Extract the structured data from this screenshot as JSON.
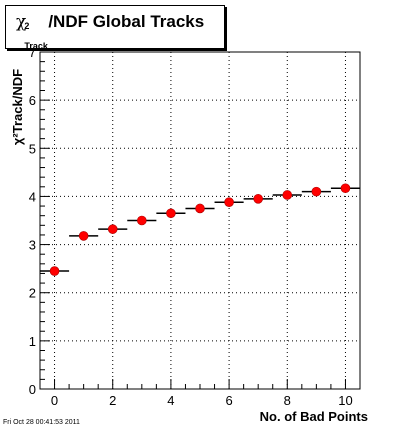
{
  "title": {
    "prefix": "χ",
    "sup": "2",
    "sub": "Track",
    "main": "/NDF  Global Tracks"
  },
  "chart_data": {
    "type": "scatter",
    "title": "χ²Track/NDF  Global Tracks",
    "xlabel": "No. of Bad Points",
    "ylabel": "χ²Track/NDF",
    "xlim": [
      -0.5,
      10.5
    ],
    "ylim": [
      0,
      7
    ],
    "x_ticks": [
      0,
      2,
      4,
      6,
      8,
      10
    ],
    "y_ticks": [
      0,
      1,
      2,
      3,
      4,
      5,
      6,
      7
    ],
    "grid": true,
    "series": [
      {
        "x": [
          0,
          1,
          2,
          3,
          4,
          5,
          6,
          7,
          8,
          9,
          10
        ],
        "y": [
          2.45,
          3.18,
          3.32,
          3.5,
          3.65,
          3.75,
          3.88,
          3.95,
          4.03,
          4.1,
          4.17
        ],
        "x_err": [
          0.5,
          0.5,
          0.5,
          0.5,
          0.5,
          0.5,
          0.5,
          0.5,
          0.5,
          0.5,
          0.5
        ],
        "marker_color": "#ff0000"
      }
    ]
  },
  "footer": "Fri Oct 28 00:41:53 2011"
}
